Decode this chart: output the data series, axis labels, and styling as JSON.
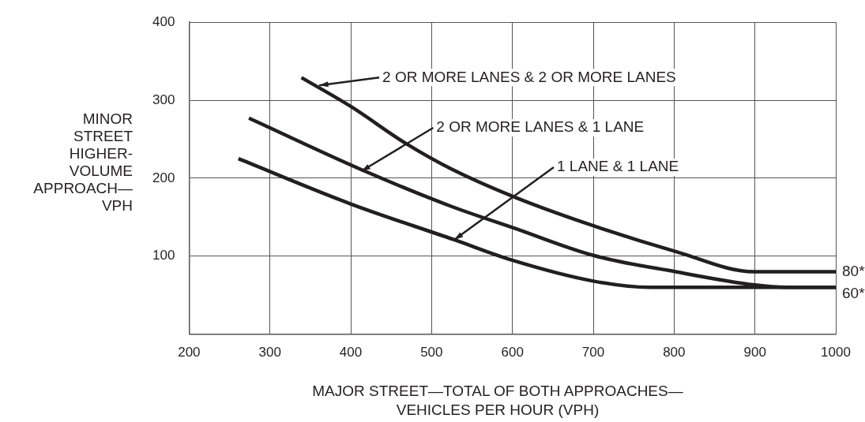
{
  "chart_data": {
    "type": "line",
    "xlabel": "MAJOR STREET—TOTAL OF BOTH APPROACHES—VEHICLES PER HOUR (VPH)",
    "ylabel": "MINOR STREET HIGHER-VOLUME APPROACH—VPH",
    "xlim": [
      200,
      1000
    ],
    "xticks": [
      200,
      300,
      400,
      500,
      600,
      700,
      800,
      900,
      1000
    ],
    "ylim": [
      0,
      400
    ],
    "yticks": [
      100,
      200,
      300,
      400
    ],
    "grid": true,
    "legend": false,
    "marker": "none",
    "line_style": "solid",
    "series": [
      {
        "color": "#231f20",
        "x": [
          339,
          400,
          469,
          524,
          602,
          700,
          802,
          899,
          1000
        ],
        "values": [
          329,
          292,
          244,
          212,
          176,
          139,
          106,
          80,
          80
        ]
      },
      {
        "color": "#231f20",
        "x": [
          274,
          413,
          524,
          602,
          700,
          802,
          900,
          940,
          1000
        ],
        "values": [
          277,
          211,
          164,
          136,
          101,
          80,
          63,
          60,
          60
        ]
      },
      {
        "color": "#231f20",
        "x": [
          261,
          400,
          528,
          599,
          700,
          770,
          1000
        ],
        "values": [
          225,
          167,
          121,
          95,
          68,
          60,
          60
        ]
      }
    ],
    "annotations": [
      {
        "text": "2 OR MORE LANES & 2 OR MORE LANES",
        "x": 361,
        "y": 319
      },
      {
        "text": "2 OR MORE LANES & 1 LANE",
        "x": 413,
        "y": 209
      },
      {
        "text": "1 LANE & 1 LANE",
        "x": 528,
        "y": 121
      },
      {
        "text": "80*",
        "x": 1000,
        "y": 80
      },
      {
        "text": "60*",
        "x": 1000,
        "y": 60
      }
    ]
  }
}
